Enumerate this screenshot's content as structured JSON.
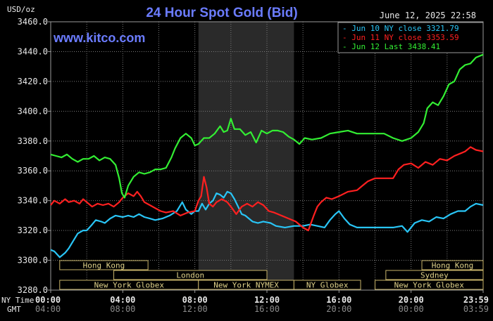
{
  "chart_data": {
    "type": "line",
    "title": "24 Hour Spot Gold (Bid)",
    "brand": "www.kitco.com",
    "timestamp": "June 12, 2025 22:58",
    "ylabel": "USD/oz",
    "ylim": [
      3280,
      3460
    ],
    "yticks": [
      "3460.0",
      "3440.0",
      "3420.0",
      "3400.0",
      "3380.0",
      "3360.0",
      "3340.0",
      "3320.0",
      "3300.0",
      "3280.0"
    ],
    "xlim": [
      0,
      24
    ],
    "xticks": [
      {
        "h": 0,
        "ny": "00:00",
        "gmt": "04:00"
      },
      {
        "h": 4,
        "ny": "04:00",
        "gmt": "08:00"
      },
      {
        "h": 8,
        "ny": "08:00",
        "gmt": "12:00"
      },
      {
        "h": 12,
        "ny": "12:00",
        "gmt": "16:00"
      },
      {
        "h": 16,
        "ny": "16:00",
        "gmt": "20:00"
      },
      {
        "h": 20,
        "ny": "20:00",
        "gmt": "00:00"
      },
      {
        "h": 24,
        "ny": "23:59",
        "gmt": "03:59"
      }
    ],
    "time_row_labels": {
      "ny": "NY Time",
      "gmt": "GMT"
    },
    "grid": true,
    "legend_position": "top-right",
    "shaded_session_hours": [
      8.2,
      13.5
    ],
    "series": [
      {
        "name": "Jun 10 NY close",
        "value_label": "3321.79",
        "color": "#29c5f6",
        "points": [
          [
            0,
            3307
          ],
          [
            0.2,
            3306
          ],
          [
            0.5,
            3302
          ],
          [
            0.8,
            3305
          ],
          [
            1.0,
            3308
          ],
          [
            1.3,
            3314
          ],
          [
            1.5,
            3318
          ],
          [
            1.8,
            3320
          ],
          [
            2.0,
            3320
          ],
          [
            2.3,
            3324
          ],
          [
            2.5,
            3327
          ],
          [
            2.8,
            3326
          ],
          [
            3.0,
            3325
          ],
          [
            3.3,
            3328
          ],
          [
            3.6,
            3330
          ],
          [
            4.0,
            3329
          ],
          [
            4.3,
            3330
          ],
          [
            4.6,
            3329
          ],
          [
            4.9,
            3331
          ],
          [
            5.2,
            3329
          ],
          [
            5.5,
            3328
          ],
          [
            5.8,
            3327
          ],
          [
            6.2,
            3328
          ],
          [
            6.6,
            3330
          ],
          [
            7.0,
            3333
          ],
          [
            7.3,
            3339
          ],
          [
            7.5,
            3334
          ],
          [
            7.8,
            3331
          ],
          [
            8.0,
            3333
          ],
          [
            8.2,
            3333
          ],
          [
            8.4,
            3338
          ],
          [
            8.6,
            3334
          ],
          [
            8.8,
            3338
          ],
          [
            9.0,
            3340
          ],
          [
            9.2,
            3345
          ],
          [
            9.4,
            3344
          ],
          [
            9.6,
            3342
          ],
          [
            9.8,
            3346
          ],
          [
            10.0,
            3345
          ],
          [
            10.2,
            3341
          ],
          [
            10.4,
            3336
          ],
          [
            10.6,
            3331
          ],
          [
            10.8,
            3330
          ],
          [
            11.0,
            3328
          ],
          [
            11.2,
            3326
          ],
          [
            11.5,
            3325
          ],
          [
            11.8,
            3326
          ],
          [
            12.2,
            3325
          ],
          [
            12.5,
            3323
          ],
          [
            13.0,
            3322
          ],
          [
            13.5,
            3323
          ],
          [
            14.0,
            3323
          ],
          [
            14.4,
            3324
          ],
          [
            14.8,
            3323
          ],
          [
            15.2,
            3322
          ],
          [
            15.5,
            3327
          ],
          [
            15.8,
            3331
          ],
          [
            16.0,
            3333
          ],
          [
            16.3,
            3328
          ],
          [
            16.6,
            3324
          ],
          [
            17.0,
            3322
          ],
          [
            18.0,
            3322
          ],
          [
            19.0,
            3322
          ],
          [
            19.5,
            3323
          ],
          [
            19.8,
            3319
          ],
          [
            20.2,
            3325
          ],
          [
            20.6,
            3327
          ],
          [
            21.0,
            3326
          ],
          [
            21.4,
            3329
          ],
          [
            21.8,
            3328
          ],
          [
            22.2,
            3331
          ],
          [
            22.6,
            3333
          ],
          [
            23.0,
            3333
          ],
          [
            23.3,
            3336
          ],
          [
            23.6,
            3338
          ],
          [
            24.0,
            3337
          ]
        ]
      },
      {
        "name": "Jun 11 NY close",
        "value_label": "3353.59",
        "color": "#ff2020",
        "points": [
          [
            0,
            3337
          ],
          [
            0.2,
            3340
          ],
          [
            0.5,
            3338
          ],
          [
            0.8,
            3341
          ],
          [
            1.0,
            3339
          ],
          [
            1.3,
            3340
          ],
          [
            1.6,
            3338
          ],
          [
            1.8,
            3341
          ],
          [
            2.0,
            3339
          ],
          [
            2.3,
            3336
          ],
          [
            2.6,
            3338
          ],
          [
            2.9,
            3337
          ],
          [
            3.2,
            3338
          ],
          [
            3.5,
            3336
          ],
          [
            3.8,
            3339
          ],
          [
            4.0,
            3342
          ],
          [
            4.3,
            3345
          ],
          [
            4.6,
            3343
          ],
          [
            4.8,
            3346
          ],
          [
            5.0,
            3343
          ],
          [
            5.2,
            3339
          ],
          [
            5.5,
            3337
          ],
          [
            5.8,
            3335
          ],
          [
            6.1,
            3333
          ],
          [
            6.4,
            3332
          ],
          [
            6.8,
            3333
          ],
          [
            7.2,
            3330
          ],
          [
            7.6,
            3332
          ],
          [
            8.0,
            3333
          ],
          [
            8.2,
            3340
          ],
          [
            8.35,
            3343
          ],
          [
            8.5,
            3356
          ],
          [
            8.65,
            3349
          ],
          [
            8.8,
            3338
          ],
          [
            9.0,
            3336
          ],
          [
            9.2,
            3339
          ],
          [
            9.5,
            3341
          ],
          [
            9.8,
            3339
          ],
          [
            10.0,
            3336
          ],
          [
            10.3,
            3331
          ],
          [
            10.6,
            3336
          ],
          [
            10.9,
            3338
          ],
          [
            11.2,
            3336
          ],
          [
            11.5,
            3339
          ],
          [
            11.8,
            3337
          ],
          [
            12.1,
            3333
          ],
          [
            12.4,
            3332
          ],
          [
            12.8,
            3330
          ],
          [
            13.2,
            3328
          ],
          [
            13.6,
            3326
          ],
          [
            14.0,
            3322
          ],
          [
            14.3,
            3320
          ],
          [
            14.6,
            3330
          ],
          [
            14.8,
            3336
          ],
          [
            15.0,
            3339
          ],
          [
            15.3,
            3342
          ],
          [
            15.6,
            3341
          ],
          [
            16.0,
            3343
          ],
          [
            16.5,
            3346
          ],
          [
            17.0,
            3347
          ],
          [
            17.3,
            3350
          ],
          [
            17.6,
            3353
          ],
          [
            18.0,
            3355
          ],
          [
            18.5,
            3355
          ],
          [
            19.0,
            3355
          ],
          [
            19.3,
            3361
          ],
          [
            19.6,
            3364
          ],
          [
            20.0,
            3365
          ],
          [
            20.4,
            3362
          ],
          [
            20.8,
            3366
          ],
          [
            21.2,
            3364
          ],
          [
            21.6,
            3368
          ],
          [
            22.0,
            3367
          ],
          [
            22.4,
            3370
          ],
          [
            22.8,
            3372
          ],
          [
            23.0,
            3373
          ],
          [
            23.3,
            3376
          ],
          [
            23.6,
            3374
          ],
          [
            24.0,
            3373
          ]
        ]
      },
      {
        "name": "Jun 12 Last",
        "value_label": "3438.41",
        "color": "#33ee33",
        "points": [
          [
            0,
            3371
          ],
          [
            0.3,
            3370
          ],
          [
            0.6,
            3369
          ],
          [
            0.9,
            3371
          ],
          [
            1.2,
            3368
          ],
          [
            1.5,
            3366
          ],
          [
            1.8,
            3368
          ],
          [
            2.1,
            3368
          ],
          [
            2.4,
            3370
          ],
          [
            2.7,
            3367
          ],
          [
            3.0,
            3369
          ],
          [
            3.3,
            3368
          ],
          [
            3.6,
            3364
          ],
          [
            3.8,
            3355
          ],
          [
            3.95,
            3345
          ],
          [
            4.1,
            3342
          ],
          [
            4.3,
            3350
          ],
          [
            4.6,
            3356
          ],
          [
            4.9,
            3359
          ],
          [
            5.2,
            3358
          ],
          [
            5.5,
            3359
          ],
          [
            5.8,
            3361
          ],
          [
            6.1,
            3361
          ],
          [
            6.4,
            3362
          ],
          [
            6.7,
            3369
          ],
          [
            6.9,
            3375
          ],
          [
            7.2,
            3382
          ],
          [
            7.5,
            3385
          ],
          [
            7.8,
            3382
          ],
          [
            8.0,
            3377
          ],
          [
            8.2,
            3378
          ],
          [
            8.5,
            3382
          ],
          [
            8.8,
            3382
          ],
          [
            9.1,
            3385
          ],
          [
            9.4,
            3390
          ],
          [
            9.6,
            3386
          ],
          [
            9.8,
            3387
          ],
          [
            10.0,
            3395
          ],
          [
            10.2,
            3388
          ],
          [
            10.5,
            3388
          ],
          [
            10.8,
            3384
          ],
          [
            11.1,
            3386
          ],
          [
            11.4,
            3379
          ],
          [
            11.7,
            3387
          ],
          [
            12.0,
            3385
          ],
          [
            12.3,
            3387
          ],
          [
            12.6,
            3387
          ],
          [
            12.9,
            3386
          ],
          [
            13.2,
            3383
          ],
          [
            13.5,
            3381
          ],
          [
            13.8,
            3378
          ],
          [
            14.1,
            3382
          ],
          [
            14.5,
            3381
          ],
          [
            15.0,
            3382
          ],
          [
            15.5,
            3385
          ],
          [
            16.0,
            3386
          ],
          [
            16.5,
            3387
          ],
          [
            17.0,
            3385
          ],
          [
            17.5,
            3385
          ],
          [
            18.0,
            3385
          ],
          [
            18.5,
            3385
          ],
          [
            19.0,
            3382
          ],
          [
            19.5,
            3380
          ],
          [
            20.0,
            3382
          ],
          [
            20.4,
            3386
          ],
          [
            20.7,
            3392
          ],
          [
            20.9,
            3402
          ],
          [
            21.2,
            3406
          ],
          [
            21.5,
            3404
          ],
          [
            21.8,
            3410
          ],
          [
            22.1,
            3418
          ],
          [
            22.4,
            3420
          ],
          [
            22.7,
            3428
          ],
          [
            23.0,
            3431
          ],
          [
            23.3,
            3432
          ],
          [
            23.6,
            3436
          ],
          [
            24.0,
            3438
          ]
        ]
      }
    ],
    "sessions": [
      {
        "label": "Hong Kong",
        "row": 0,
        "start": 0.5,
        "end": 5.4
      },
      {
        "label": "Hong Kong",
        "row": 0,
        "start": 20.6,
        "end": 24.0
      },
      {
        "label": "London",
        "row": 1,
        "start": 3.5,
        "end": 12.0
      },
      {
        "label": "Sydney",
        "row": 1,
        "start": 18.6,
        "end": 24.0
      },
      {
        "label": "New York Globex",
        "row": 2,
        "start": 0.5,
        "end": 8.2
      },
      {
        "label": "New York NYMEX",
        "row": 2,
        "start": 8.2,
        "end": 13.5
      },
      {
        "label": "NY Globex",
        "row": 2,
        "start": 13.5,
        "end": 17.2
      },
      {
        "label": "New York Globex",
        "row": 2,
        "start": 18.0,
        "end": 24.0
      }
    ]
  }
}
